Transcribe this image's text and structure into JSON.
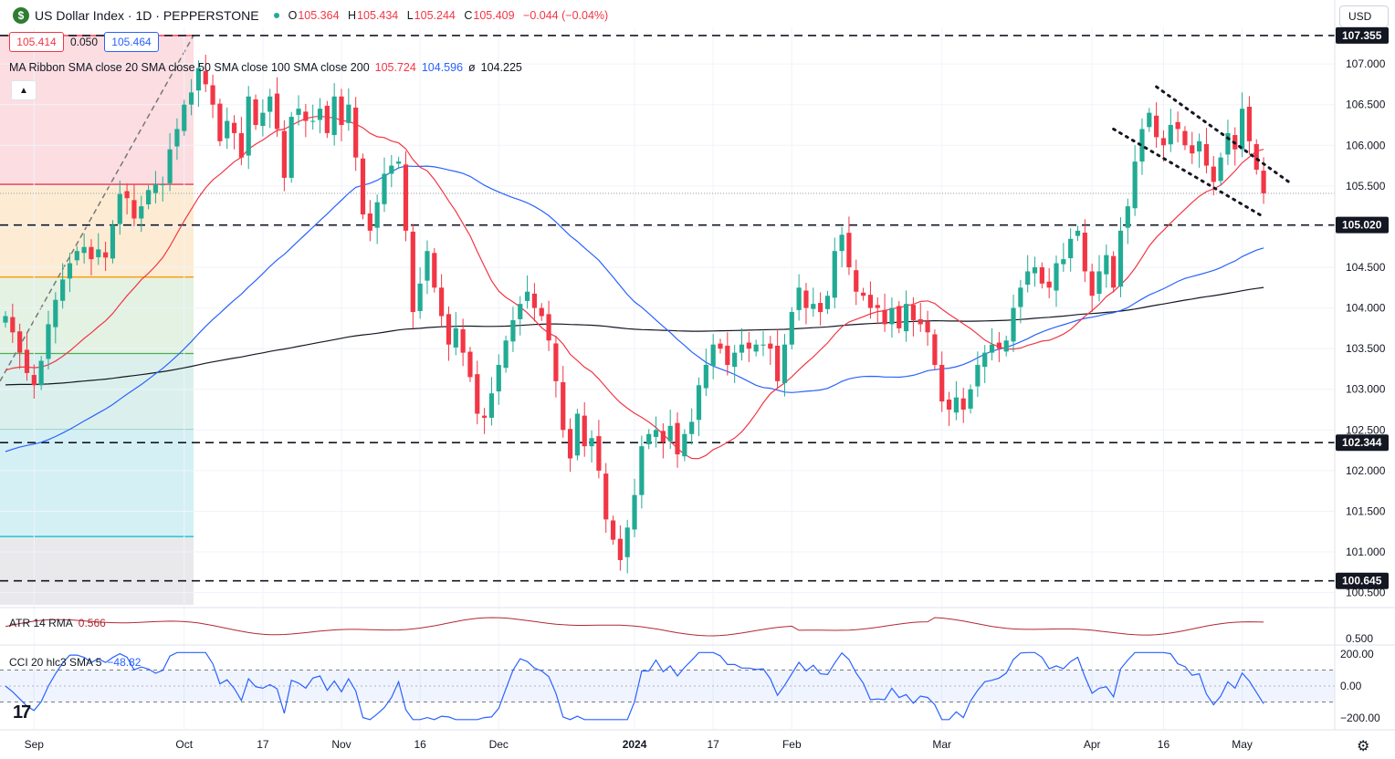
{
  "header": {
    "logo_letter": "$",
    "title": "US Dollar Index · 1D · PEPPERSTONE",
    "ohlc": [
      {
        "k": "O",
        "v": "105.364"
      },
      {
        "k": "H",
        "v": "105.434"
      },
      {
        "k": "L",
        "v": "105.244"
      },
      {
        "k": "C",
        "v": "105.409"
      },
      {
        "k": "",
        "v": "−0.044 (−0.04%)"
      }
    ],
    "currency": "USD"
  },
  "price_box": {
    "sell": "105.414",
    "spread": "0.050",
    "buy": "105.464",
    "collapse_icon": "chevron-up-icon"
  },
  "ma_legend": {
    "label": "MA Ribbon SMA close 20 SMA close 50 SMA close 100 SMA close 200",
    "v1": "105.724",
    "v2": "104.596",
    "v3": "ø",
    "v4": "104.225"
  },
  "atr_legend": {
    "label": "ATR 14 RMA",
    "value": "0.566"
  },
  "cci_legend": {
    "label": "CCI 20 hlc3 SMA 5",
    "value": "−48.82"
  },
  "colors": {
    "up": "#22ab94",
    "down": "#f23645",
    "sma20": "#f23645",
    "sma50": "#2962ff",
    "sma200": "#131722",
    "atr": "#b22833",
    "cci": "#2962ff"
  },
  "chart_data": {
    "type": "candlestick",
    "ylim": [
      100.35,
      107.45
    ],
    "y_ticks": [
      "100.500",
      "101.000",
      "101.500",
      "102.000",
      "102.500",
      "103.000",
      "103.500",
      "104.000",
      "104.500",
      "105.500",
      "106.000",
      "106.500",
      "107.000"
    ],
    "x_labels": [
      {
        "label": "Sep",
        "bar": 4
      },
      {
        "label": "Oct",
        "bar": 25
      },
      {
        "label": "17",
        "bar": 36
      },
      {
        "label": "Nov",
        "bar": 47
      },
      {
        "label": "16",
        "bar": 58
      },
      {
        "label": "Dec",
        "bar": 69
      },
      {
        "label": "2024",
        "bar": 88
      },
      {
        "label": "17",
        "bar": 99
      },
      {
        "label": "Feb",
        "bar": 110
      },
      {
        "label": "Mar",
        "bar": 131
      },
      {
        "label": "Apr",
        "bar": 152
      },
      {
        "label": "16",
        "bar": 162
      },
      {
        "label": "May",
        "bar": 173
      }
    ],
    "horizontal_levels": [
      {
        "value": 107.35,
        "label": "107.355"
      },
      {
        "value": 105.02,
        "label": "105.020"
      },
      {
        "value": 102.344,
        "label": "102.344"
      },
      {
        "value": 100.645,
        "label": "100.645"
      }
    ],
    "fib_levels": [
      107.35,
      105.52,
      104.38,
      103.44,
      102.5,
      101.19
    ],
    "trend_channel": [
      {
        "from": [
          161,
          106.72
        ],
        "to": [
          180,
          105.52
        ]
      },
      {
        "from": [
          155,
          106.2
        ],
        "to": [
          176,
          105.12
        ]
      }
    ],
    "current_price": 105.409,
    "closes": [
      103.9,
      103.7,
      103.45,
      103.2,
      103.05,
      103.35,
      103.8,
      104.1,
      104.35,
      104.55,
      104.7,
      104.75,
      104.6,
      104.72,
      104.62,
      105.02,
      105.4,
      105.35,
      105.1,
      105.25,
      105.45,
      105.52,
      105.52,
      105.95,
      106.2,
      106.5,
      106.65,
      106.95,
      106.75,
      106.5,
      106.05,
      106.3,
      106.15,
      105.85,
      106.6,
      106.25,
      106.4,
      106.6,
      106.2,
      105.6,
      106.35,
      106.45,
      106.3,
      106.3,
      106.45,
      106.15,
      106.6,
      106.25,
      106.5,
      105.85,
      105.15,
      104.95,
      105.3,
      105.65,
      105.75,
      105.8,
      104.95,
      103.95,
      104.3,
      104.7,
      104.25,
      103.9,
      103.55,
      103.75,
      103.45,
      103.15,
      102.7,
      102.65,
      102.95,
      103.3,
      103.6,
      103.85,
      104.05,
      104.2,
      104.0,
      103.9,
      103.6,
      103.1,
      102.5,
      102.15,
      102.7,
      102.3,
      102.4,
      102.0,
      101.4,
      101.15,
      100.9,
      101.3,
      101.7,
      102.3,
      102.45,
      102.5,
      102.35,
      102.55,
      102.2,
      102.45,
      102.6,
      103.05,
      103.3,
      103.55,
      103.5,
      103.3,
      103.45,
      103.55,
      103.5,
      103.55,
      103.55,
      103.5,
      103.1,
      103.55,
      103.95,
      104.25,
      104.0,
      104.05,
      103.95,
      104.15,
      104.7,
      104.9,
      104.5,
      104.2,
      104.15,
      104.0,
      104.0,
      103.8,
      104.0,
      103.75,
      104.05,
      103.85,
      103.8,
      103.7,
      103.3,
      102.85,
      102.75,
      102.9,
      102.75,
      103.0,
      103.3,
      103.45,
      103.55,
      103.5,
      103.6,
      104.0,
      104.25,
      104.45,
      104.5,
      104.3,
      104.25,
      104.55,
      104.6,
      104.85,
      104.95,
      104.45,
      104.15,
      104.45,
      104.65,
      104.25,
      104.95,
      105.25,
      105.8,
      106.2,
      106.4,
      106.1,
      106.0,
      106.25,
      106.2,
      106.0,
      105.9,
      106.05,
      105.75,
      105.55,
      105.85,
      106.15,
      105.95,
      106.45,
      106.05,
      105.7,
      105.41
    ]
  }
}
